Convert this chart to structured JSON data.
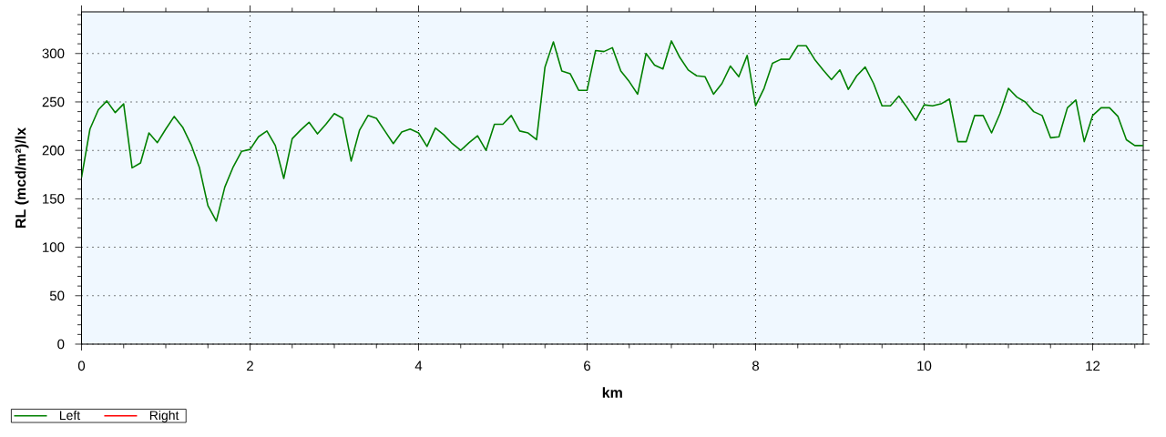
{
  "chart_data": {
    "type": "line",
    "xlabel": "km",
    "ylabel": "RL (mcd/m²)/lx",
    "x": [
      0,
      0.1,
      0.2,
      0.3,
      0.4,
      0.5,
      0.6,
      0.7,
      0.8,
      0.9,
      1,
      1.1,
      1.2,
      1.3,
      1.4,
      1.5,
      1.6,
      1.7,
      1.8,
      1.9,
      2,
      2.1,
      2.2,
      2.3,
      2.4,
      2.5,
      2.6,
      2.7,
      2.8,
      2.9,
      3,
      3.1,
      3.2,
      3.3,
      3.4,
      3.5,
      3.6,
      3.7,
      3.8,
      3.9,
      4,
      4.1,
      4.2,
      4.3,
      4.4,
      4.5,
      4.6,
      4.7,
      4.8,
      4.9,
      5,
      5.1,
      5.2,
      5.3,
      5.4,
      5.5,
      5.6,
      5.7,
      5.8,
      5.9,
      6,
      6.1,
      6.2,
      6.3,
      6.4,
      6.5,
      6.6,
      6.7,
      6.8,
      6.9,
      7,
      7.1,
      7.2,
      7.3,
      7.4,
      7.5,
      7.6,
      7.7,
      7.8,
      7.9,
      8,
      8.1,
      8.2,
      8.3,
      8.4,
      8.5,
      8.6,
      8.7,
      8.8,
      8.9,
      9,
      9.1,
      9.2,
      9.3,
      9.4,
      9.5,
      9.6,
      9.7,
      9.8,
      9.9,
      10,
      10.1,
      10.2,
      10.3,
      10.4,
      10.5,
      10.6,
      10.7,
      10.8,
      10.9,
      11,
      11.1,
      11.2,
      11.3,
      11.4,
      11.5,
      11.6,
      11.7,
      11.8,
      11.9,
      12,
      12.1,
      12.2,
      12.3,
      12.4,
      12.5,
      12.6
    ],
    "series": [
      {
        "name": "Left",
        "color": "#008000",
        "values": [
          172,
          222,
          242,
          251,
          239,
          248,
          182,
          187,
          218,
          208,
          222,
          235,
          224,
          206,
          182,
          143,
          127,
          162,
          183,
          199,
          201,
          214,
          220,
          205,
          171,
          212,
          221,
          229,
          217,
          227,
          238,
          233,
          189,
          221,
          236,
          233,
          220,
          207,
          219,
          222,
          218,
          204,
          223,
          216,
          207,
          200,
          208,
          215,
          200,
          227,
          227,
          236,
          220,
          218,
          211,
          286,
          312,
          282,
          279,
          262,
          262,
          303,
          302,
          306,
          282,
          271,
          258,
          300,
          288,
          284,
          313,
          296,
          283,
          277,
          276,
          258,
          269,
          287,
          276,
          298,
          246,
          264,
          290,
          294,
          294,
          308,
          308,
          294,
          283,
          273,
          283,
          263,
          277,
          286,
          269,
          246,
          246,
          256,
          244,
          231,
          247,
          246,
          248,
          253,
          209,
          209,
          236,
          236,
          218,
          238,
          264,
          255,
          250,
          240,
          236,
          213,
          214,
          244,
          252,
          209,
          236,
          244,
          244,
          235,
          211,
          205,
          205
        ]
      },
      {
        "name": "Right",
        "color": "#ff0000",
        "values": [
          null,
          null,
          null,
          null,
          null,
          null,
          null,
          null,
          null,
          null,
          null,
          null,
          null,
          null,
          null,
          null,
          null,
          null,
          null,
          null,
          null,
          null,
          null,
          null,
          null,
          null,
          null,
          null,
          null,
          null,
          null,
          null,
          null,
          null,
          null,
          null,
          null,
          null,
          null,
          null,
          null,
          null,
          null,
          null,
          null,
          null,
          null,
          null,
          null,
          null,
          null,
          null,
          null,
          null,
          null,
          null,
          null,
          null,
          null,
          null,
          null,
          null,
          null,
          null,
          null,
          null,
          null,
          null,
          null,
          null,
          null,
          null,
          null,
          null,
          null,
          null,
          null,
          null,
          null,
          null,
          null,
          null,
          null,
          null,
          null,
          null,
          null,
          null,
          null,
          null,
          null,
          null,
          null,
          null,
          null,
          null,
          null,
          null,
          null,
          null,
          null,
          null,
          null,
          null,
          null,
          null,
          null,
          null,
          null,
          null,
          null,
          null,
          null,
          null,
          null,
          null,
          null,
          null,
          null,
          null,
          null,
          null,
          null,
          null,
          null,
          null,
          null
        ]
      }
    ],
    "xlim": [
      0,
      12.6
    ],
    "ylim": [
      0,
      343
    ],
    "xticks": [
      0,
      {
        "value": 0.5,
        "label": null
      },
      {
        "value": 1,
        "label": null
      },
      {
        "value": 1.5,
        "label": null
      },
      2,
      {
        "value": 2.5,
        "label": null
      },
      {
        "value": 3,
        "label": null
      },
      {
        "value": 3.5,
        "label": null
      },
      4,
      {
        "value": 4.5,
        "label": null
      },
      {
        "value": 5,
        "label": null
      },
      {
        "value": 5.5,
        "label": null
      },
      6,
      {
        "value": 6.5,
        "label": null
      },
      {
        "value": 7,
        "label": null
      },
      {
        "value": 7.5,
        "label": null
      },
      8,
      {
        "value": 8.5,
        "label": null
      },
      {
        "value": 9,
        "label": null
      },
      {
        "value": 9.5,
        "label": null
      },
      10,
      {
        "value": 10.5,
        "label": null
      },
      {
        "value": 11,
        "label": null
      },
      {
        "value": 11.5,
        "label": null
      },
      12,
      {
        "value": 12.5,
        "label": null
      }
    ],
    "yticks": [
      0,
      {
        "value": 10,
        "label": null
      },
      {
        "value": 20,
        "label": null
      },
      {
        "value": 30,
        "label": null
      },
      {
        "value": 40,
        "label": null
      },
      50,
      {
        "value": 60,
        "label": null
      },
      {
        "value": 70,
        "label": null
      },
      {
        "value": 80,
        "label": null
      },
      {
        "value": 90,
        "label": null
      },
      100,
      {
        "value": 110,
        "label": null
      },
      {
        "value": 120,
        "label": null
      },
      {
        "value": 130,
        "label": null
      },
      {
        "value": 140,
        "label": null
      },
      150,
      {
        "value": 160,
        "label": null
      },
      {
        "value": 170,
        "label": null
      },
      {
        "value": 180,
        "label": null
      },
      {
        "value": 190,
        "label": null
      },
      200,
      {
        "value": 210,
        "label": null
      },
      {
        "value": 220,
        "label": null
      },
      {
        "value": 230,
        "label": null
      },
      {
        "value": 240,
        "label": null
      },
      250,
      {
        "value": 260,
        "label": null
      },
      {
        "value": 270,
        "label": null
      },
      {
        "value": 280,
        "label": null
      },
      {
        "value": 290,
        "label": null
      },
      300,
      {
        "value": 310,
        "label": null
      },
      {
        "value": 320,
        "label": null
      },
      {
        "value": 330,
        "label": null
      },
      {
        "value": 340,
        "label": null
      }
    ],
    "grid": true,
    "legend": "bottom left"
  }
}
